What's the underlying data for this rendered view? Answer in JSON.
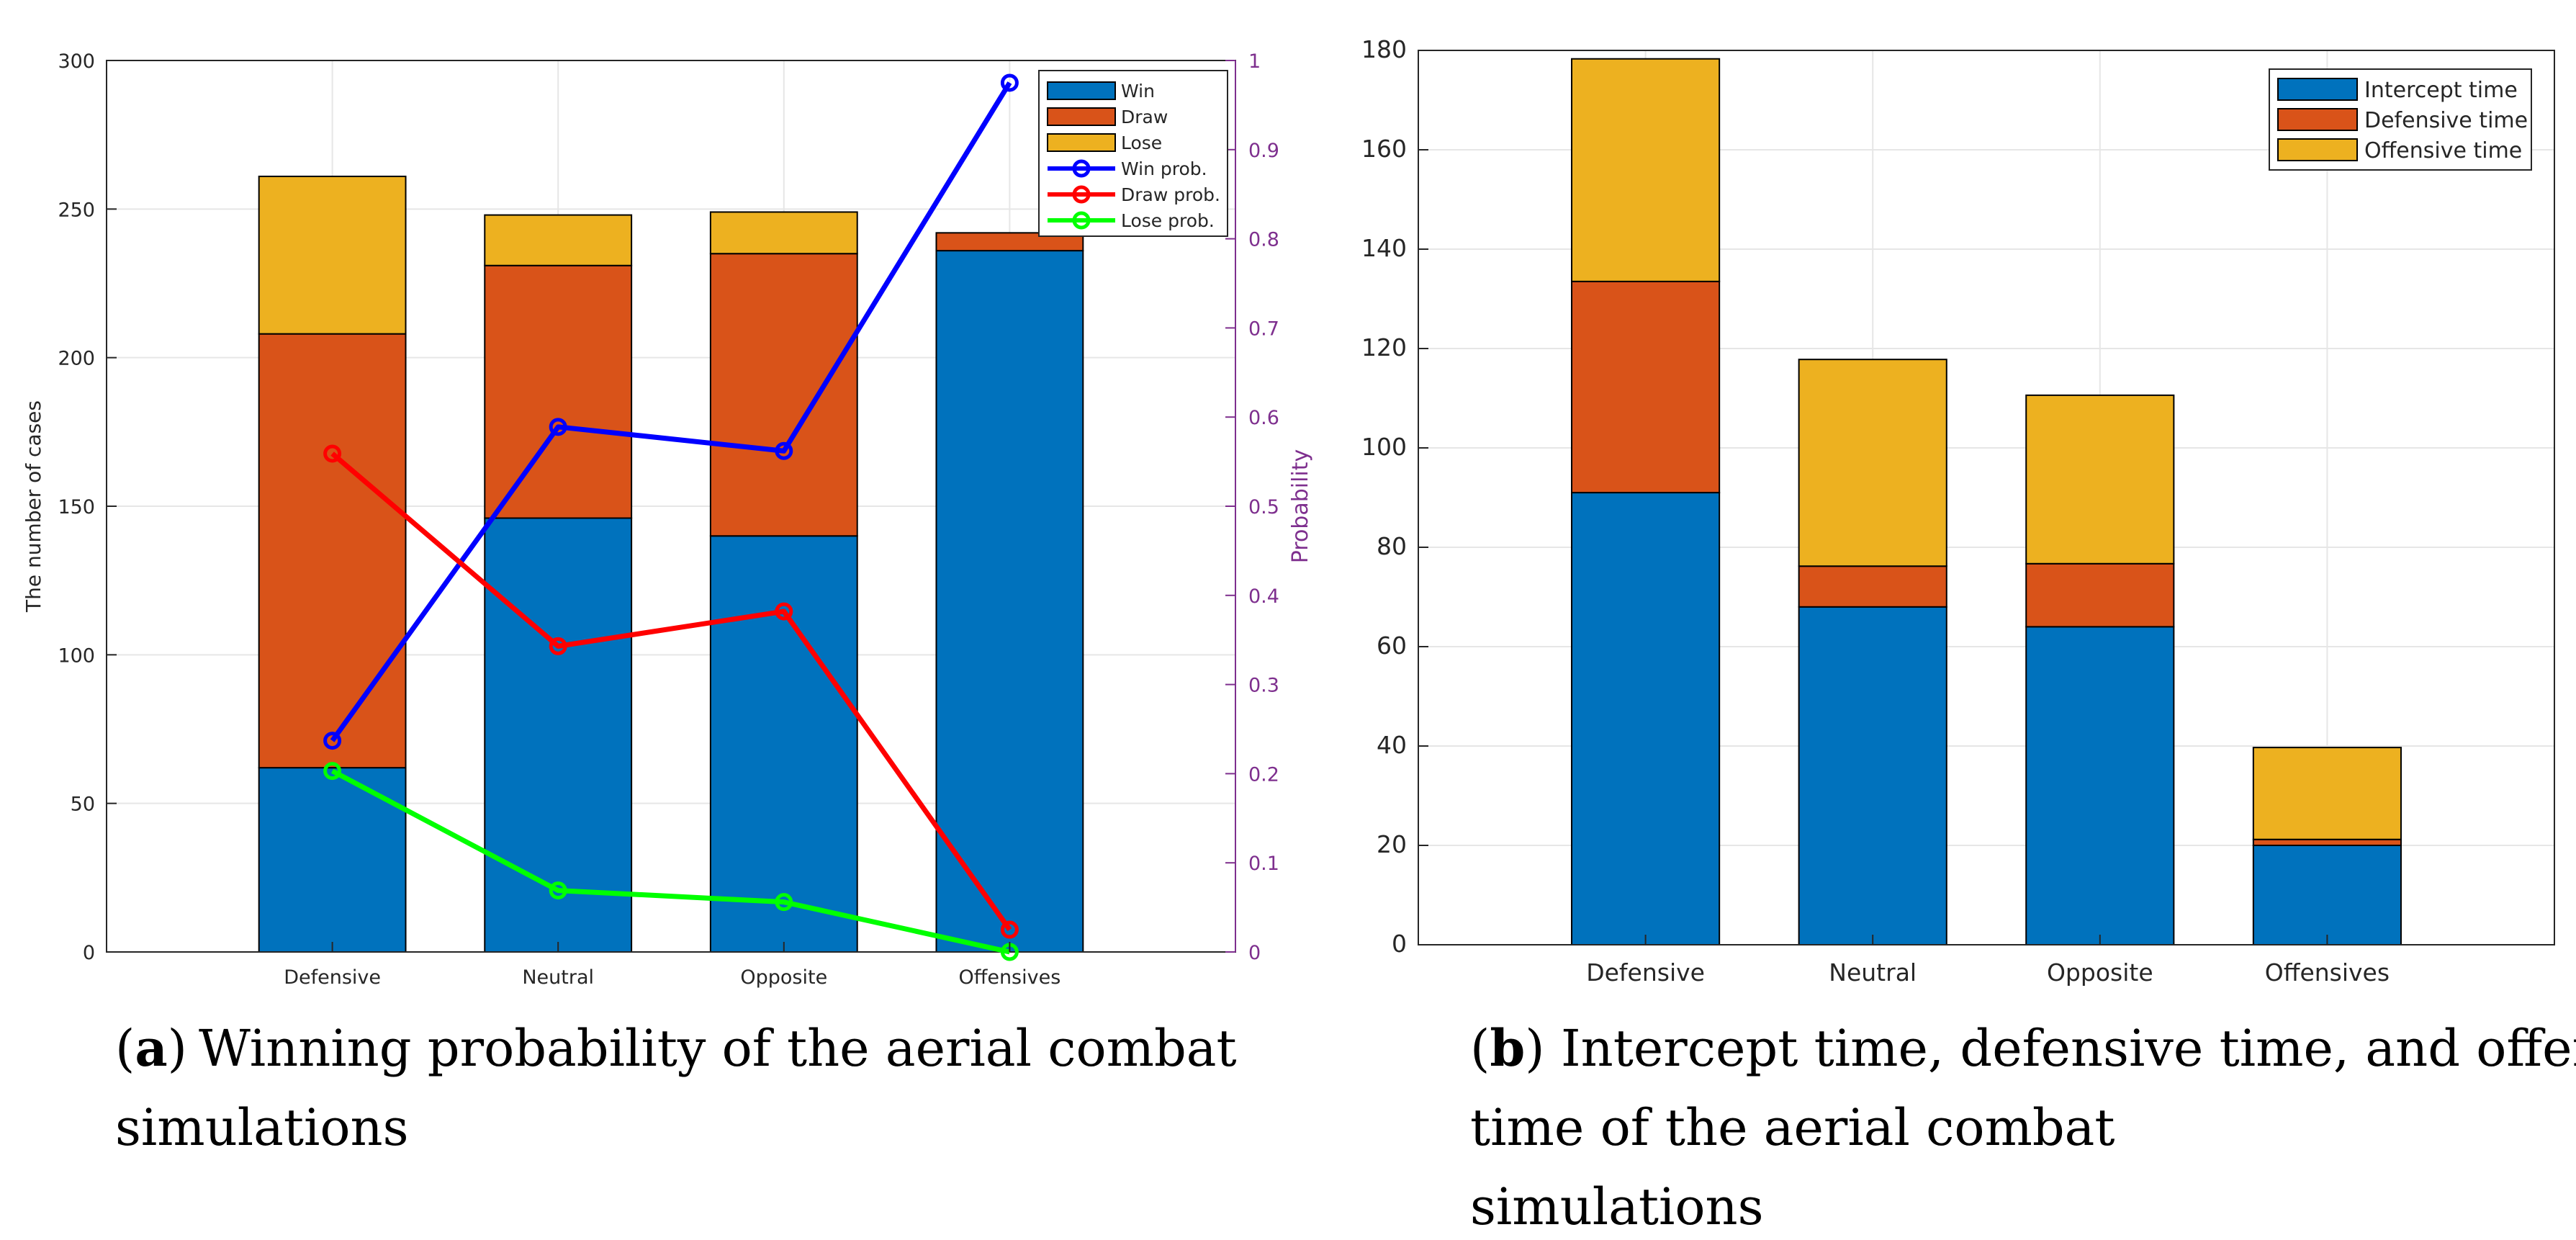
{
  "chart_data": [
    {
      "type": "bar",
      "stacked": true,
      "panel_label": "a",
      "caption": "Winning probability of the aerial combat simulations",
      "categories": [
        "Defensive",
        "Neutral",
        "Opposite",
        "Offensives"
      ],
      "ylabel": "The number of cases",
      "ylabel_right": "Probability",
      "ylim": [
        0,
        300
      ],
      "ylim_right": [
        0,
        1
      ],
      "yticks": [
        "0",
        "50",
        "100",
        "150",
        "200",
        "250",
        "300"
      ],
      "yticks_right": [
        "0",
        "0.1",
        "0.2",
        "0.3",
        "0.4",
        "0.5",
        "0.6",
        "0.7",
        "0.8",
        "0.9",
        "1"
      ],
      "grid": true,
      "legend_position": "top-right",
      "series": [
        {
          "name": "Win",
          "values": [
            62,
            146,
            140,
            236
          ],
          "color": "#0072BD"
        },
        {
          "name": "Draw",
          "values": [
            146,
            85,
            95,
            6
          ],
          "color": "#D95319"
        },
        {
          "name": "Lose",
          "values": [
            53,
            17,
            14,
            0
          ],
          "color": "#EDB120"
        }
      ],
      "line_series": [
        {
          "name": "Win prob.",
          "values": [
            0.237,
            0.589,
            0.562,
            0.975
          ],
          "color": "#0000FF"
        },
        {
          "name": "Draw prob.",
          "values": [
            0.559,
            0.343,
            0.382,
            0.025
          ],
          "color": "#FF0000"
        },
        {
          "name": "Lose prob.",
          "values": [
            0.203,
            0.069,
            0.056,
            0.0
          ],
          "color": "#00FF00"
        }
      ],
      "right_axis_color": "#7E2F8E"
    },
    {
      "type": "bar",
      "stacked": true,
      "panel_label": "b",
      "caption": "Intercept time, defensive time, and offensive time of the aerial combat simulations",
      "categories": [
        "Defensive",
        "Neutral",
        "Opposite",
        "Offensives"
      ],
      "ylim": [
        0,
        180
      ],
      "yticks": [
        "0",
        "20",
        "40",
        "60",
        "80",
        "100",
        "120",
        "140",
        "160",
        "180"
      ],
      "grid": true,
      "legend_position": "top-right",
      "series": [
        {
          "name": "Intercept time",
          "values": [
            91,
            68,
            64,
            20
          ],
          "color": "#0072BD"
        },
        {
          "name": "Defensive time",
          "values": [
            42.5,
            8.2,
            12.7,
            1.2
          ],
          "color": "#D95319"
        },
        {
          "name": "Offensive time",
          "values": [
            44.8,
            41.6,
            33.9,
            18.5
          ],
          "color": "#EDB120"
        }
      ]
    }
  ]
}
